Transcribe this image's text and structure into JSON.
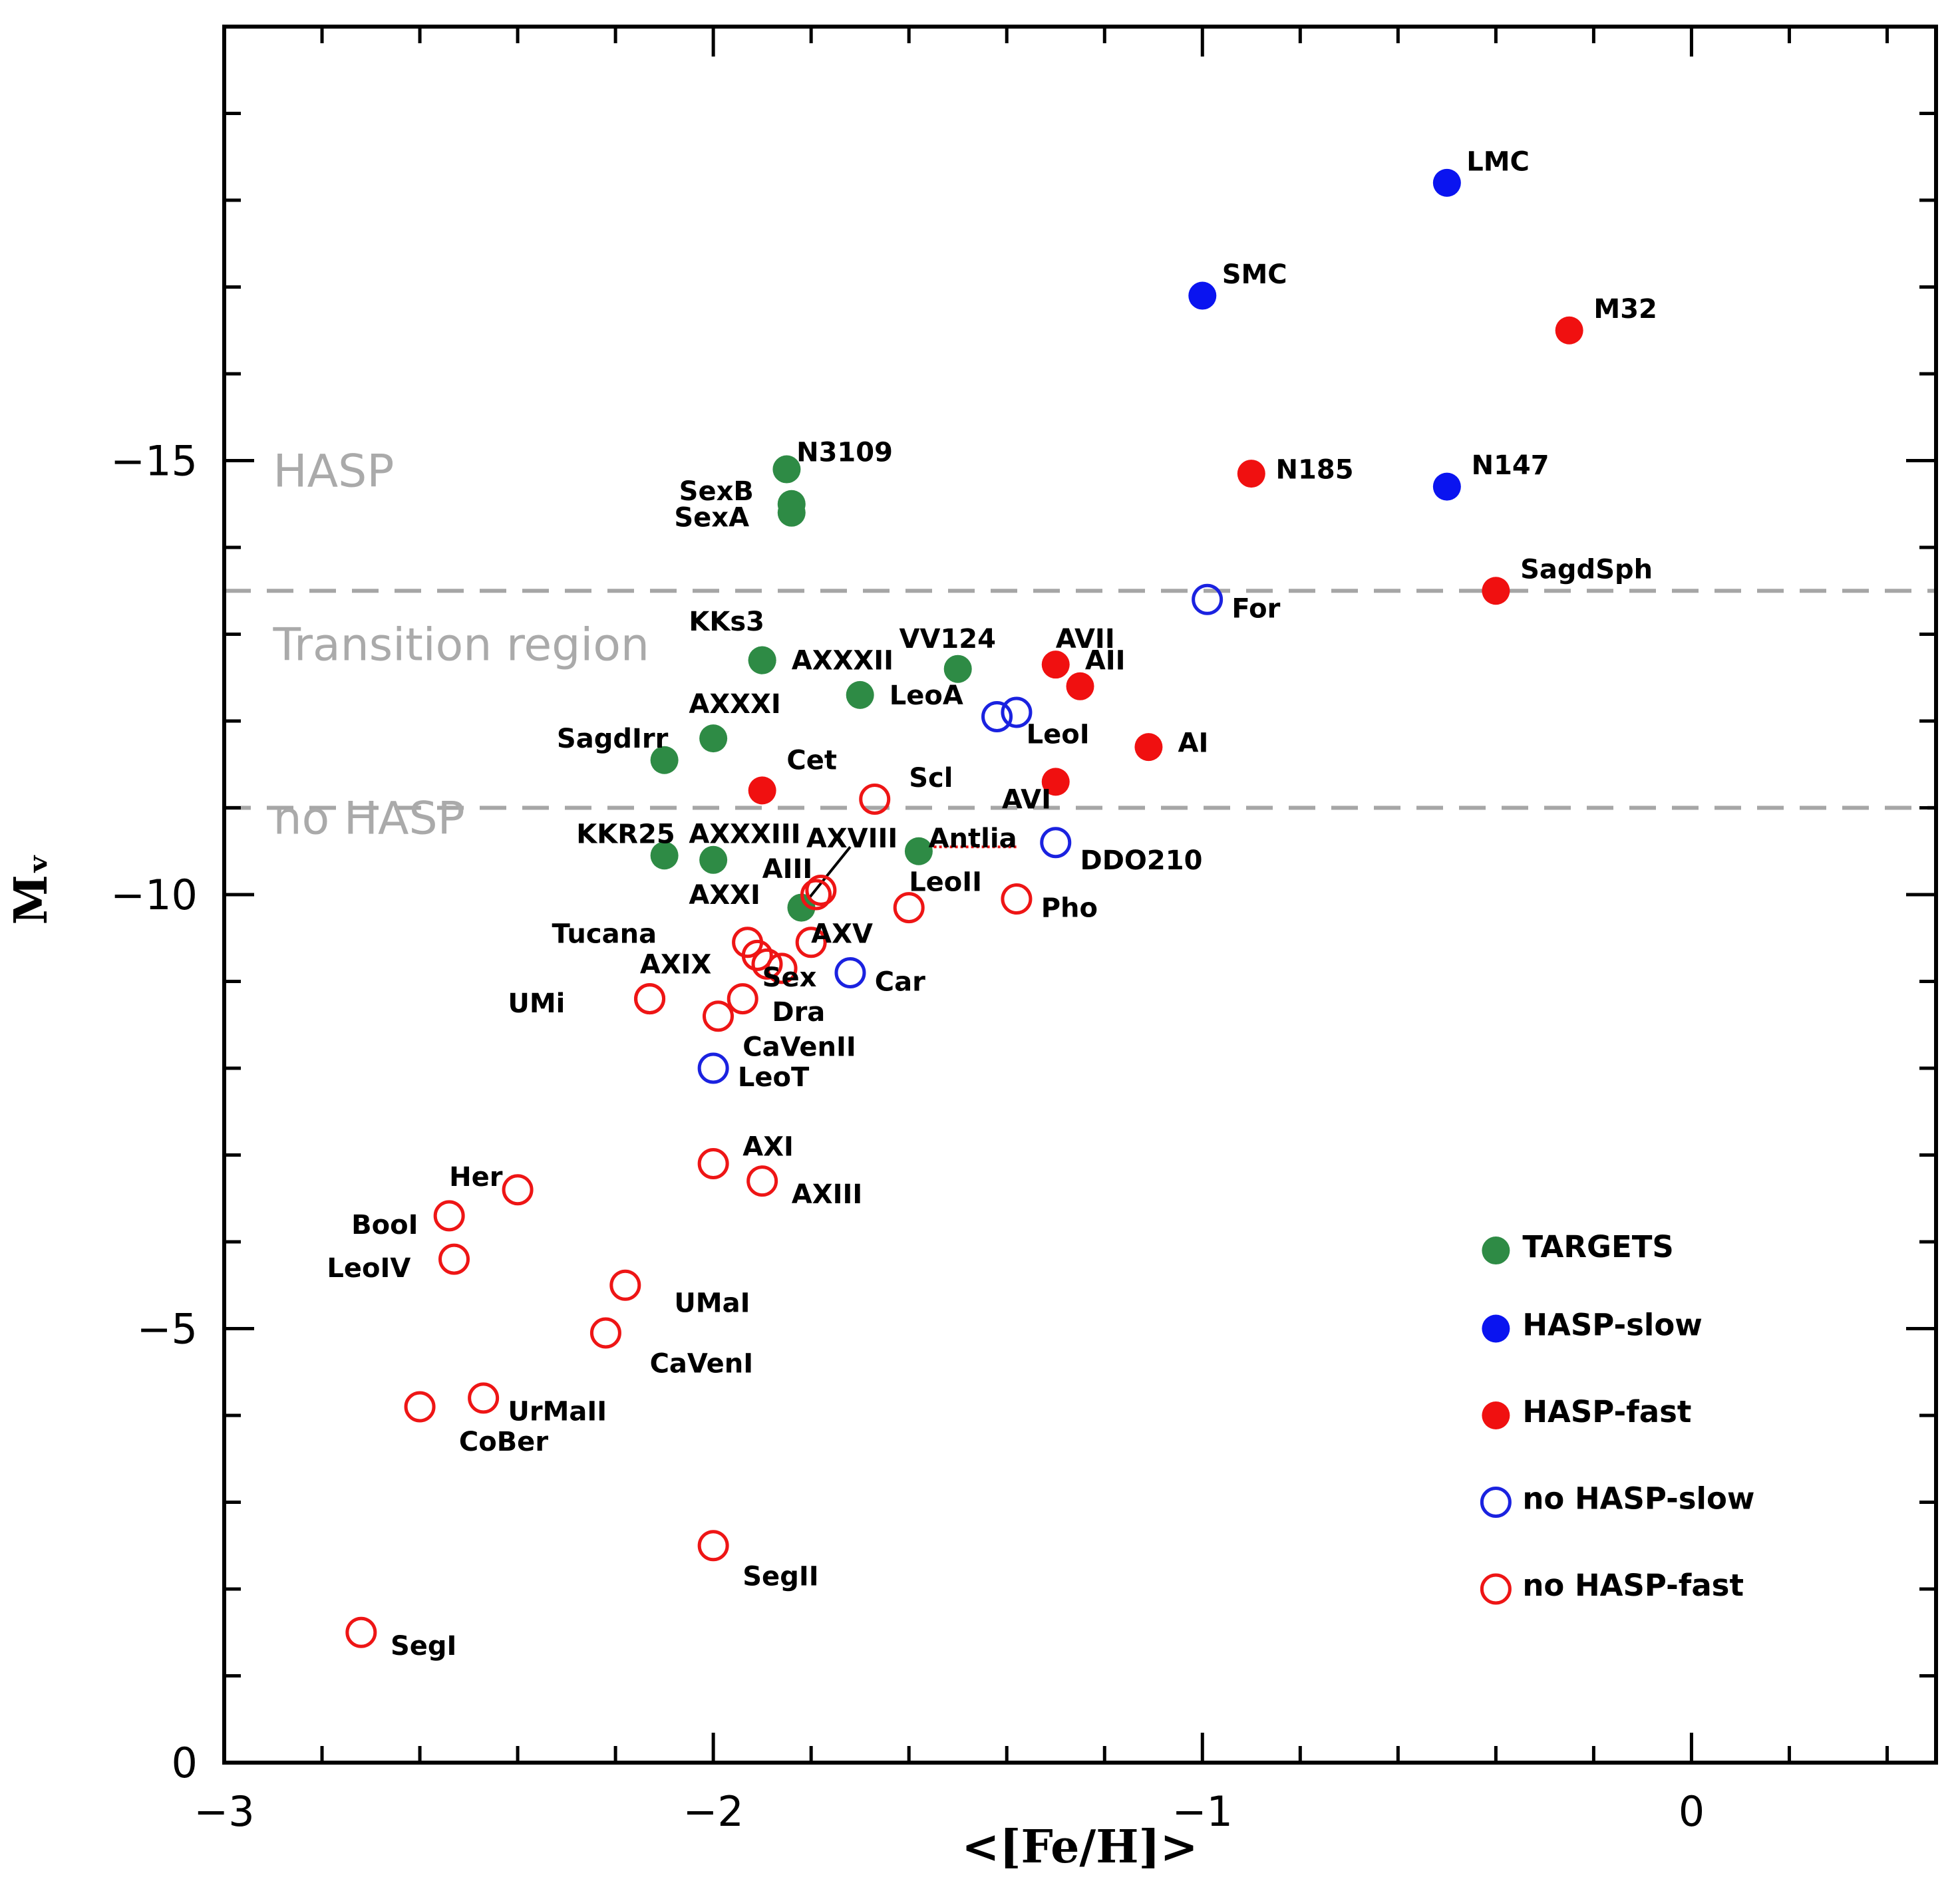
{
  "chart_data": {
    "type": "scatter",
    "xlabel": "<[Fe/H]>",
    "ylabel": "Mᵥ",
    "xlim": [
      -3,
      0.5
    ],
    "ylim": [
      0,
      -20
    ],
    "x_ticks": [
      {
        "value": -3,
        "label": "−3"
      },
      {
        "value": -2,
        "label": "−2"
      },
      {
        "value": -1,
        "label": "−1"
      },
      {
        "value": 0,
        "label": "0"
      }
    ],
    "y_ticks": [
      {
        "value": -15,
        "label": "−15"
      },
      {
        "value": -10,
        "label": "−10"
      },
      {
        "value": -5,
        "label": "−5"
      },
      {
        "value": 0,
        "label": "0"
      }
    ],
    "boundaries": [
      -13.5,
      -11.0
    ],
    "regions": [
      {
        "text": "HASP",
        "y": -14.7
      },
      {
        "text": "Transition region",
        "y": -12.7
      },
      {
        "text": "no HASP",
        "y": -10.7
      }
    ],
    "styles": {
      "target": {
        "color": "#2e8b45",
        "filled": true
      },
      "hasp_slow": {
        "color": "#0a14f0",
        "filled": true
      },
      "hasp_fast": {
        "color": "#f01010",
        "filled": true
      },
      "nohasp_slow": {
        "color": "#1a22e0",
        "filled": false
      },
      "nohasp_fast": {
        "color": "#ee1515",
        "filled": false
      }
    },
    "legend": [
      {
        "label": "TARGETS",
        "group": "target",
        "y": -5.9
      },
      {
        "label": "HASP-slow",
        "group": "hasp_slow",
        "y": -5.0
      },
      {
        "label": "HASP-fast",
        "group": "hasp_fast",
        "y": -4.0
      },
      {
        "label": "no HASP-slow",
        "group": "nohasp_slow",
        "y": -3.0
      },
      {
        "label": "no HASP-fast",
        "group": "nohasp_fast",
        "y": -2.0
      }
    ],
    "legend_x": -0.4,
    "series": [
      {
        "name": "TARGETS",
        "group": "target",
        "points": [
          {
            "label": "N3109",
            "x": -1.85,
            "y": -14.9,
            "lx": -1.83,
            "ly": -15.1
          },
          {
            "label": "SexB",
            "x": -1.84,
            "y": -14.5,
            "lx": -2.07,
            "ly": -14.65
          },
          {
            "label": "SexA",
            "x": -1.84,
            "y": -14.4,
            "lx": -2.08,
            "ly": -14.35
          },
          {
            "label": "KKs3",
            "x": -1.9,
            "y": -12.7,
            "lx": -2.05,
            "ly": -13.15
          },
          {
            "label": "AXXXII",
            "x": -1.9,
            "y": -12.7,
            "lx": -1.84,
            "ly": -12.7
          },
          {
            "label": "VV124",
            "x": -1.5,
            "y": -12.6,
            "lx": -1.62,
            "ly": -12.95
          },
          {
            "label": "LeoA",
            "x": -1.7,
            "y": -12.3,
            "lx": -1.64,
            "ly": -12.3
          },
          {
            "label": "AXXXI",
            "x": -2.0,
            "y": -11.8,
            "lx": -2.05,
            "ly": -12.2
          },
          {
            "label": "SagdIrr",
            "x": -2.1,
            "y": -11.55,
            "lx": -2.32,
            "ly": -11.8
          },
          {
            "label": "KKR25",
            "x": -2.1,
            "y": -10.45,
            "lx": -2.28,
            "ly": -10.7
          },
          {
            "label": "AXXXIII",
            "x": -2.0,
            "y": -10.4,
            "lx": -2.05,
            "ly": -10.7
          },
          {
            "label": "Antlia",
            "x": -1.58,
            "y": -10.5,
            "lx": -1.56,
            "ly": -10.65
          },
          {
            "label": "AXXI",
            "x": -1.82,
            "y": -9.85,
            "lx": -2.05,
            "ly": -10.0
          }
        ]
      },
      {
        "name": "HASP-slow",
        "group": "hasp_slow",
        "points": [
          {
            "label": "LMC",
            "x": -0.5,
            "y": -18.2,
            "lx": -0.46,
            "ly": -18.45
          },
          {
            "label": "SMC",
            "x": -1.0,
            "y": -16.9,
            "lx": -0.96,
            "ly": -17.15
          },
          {
            "label": "N147",
            "x": -0.5,
            "y": -14.7,
            "lx": -0.45,
            "ly": -14.95
          }
        ]
      },
      {
        "name": "HASP-fast",
        "group": "hasp_fast",
        "points": [
          {
            "label": "M32",
            "x": -0.25,
            "y": -16.5,
            "lx": -0.2,
            "ly": -16.75
          },
          {
            "label": "N185",
            "x": -0.9,
            "y": -14.85,
            "lx": -0.85,
            "ly": -14.9
          },
          {
            "label": "SagdSph",
            "x": -0.4,
            "y": -13.5,
            "lx": -0.35,
            "ly": -13.75
          },
          {
            "label": "AVII",
            "x": -1.3,
            "y": -12.65,
            "lx": -1.3,
            "ly": -12.95
          },
          {
            "label": "AII",
            "x": -1.25,
            "y": -12.4,
            "lx": -1.24,
            "ly": -12.7
          },
          {
            "label": "AI",
            "x": -1.11,
            "y": -11.7,
            "lx": -1.05,
            "ly": -11.75
          },
          {
            "label": "Cet",
            "x": -1.9,
            "y": -11.2,
            "lx": -1.85,
            "ly": -11.55
          },
          {
            "label": "AVI",
            "x": -1.3,
            "y": -11.3,
            "lx": -1.41,
            "ly": -11.1
          }
        ]
      },
      {
        "name": "no HASP-slow",
        "group": "nohasp_slow",
        "points": [
          {
            "label": "For",
            "x": -0.99,
            "y": -13.4,
            "lx": -0.94,
            "ly": -13.3
          },
          {
            "label": "LeoI",
            "x": -1.42,
            "y": -12.05,
            "lx": -1.36,
            "ly": -11.85
          },
          {
            "label": "",
            "x": -1.38,
            "y": -12.1,
            "lx": 0,
            "ly": 0
          },
          {
            "label": "DDO210",
            "x": -1.3,
            "y": -10.6,
            "lx": -1.25,
            "ly": -10.4
          },
          {
            "label": "Car",
            "x": -1.72,
            "y": -9.1,
            "lx": -1.67,
            "ly": -9.0
          },
          {
            "label": "LeoT",
            "x": -2.0,
            "y": -8.0,
            "lx": -1.95,
            "ly": -7.9
          }
        ]
      },
      {
        "name": "no HASP-fast",
        "group": "nohasp_fast",
        "points": [
          {
            "label": "Scl",
            "x": -1.67,
            "y": -11.1,
            "lx": -1.6,
            "ly": -11.35
          },
          {
            "label": "AXVIII",
            "x": -1.79,
            "y": -10.0,
            "lx": -1.81,
            "ly": -10.65
          },
          {
            "label": "AIII",
            "x": -1.78,
            "y": -10.05,
            "lx": -1.9,
            "ly": -10.3
          },
          {
            "label": "LeoII",
            "x": -1.6,
            "y": -9.85,
            "lx": -1.6,
            "ly": -10.15
          },
          {
            "label": "Pho",
            "x": -1.38,
            "y": -9.95,
            "lx": -1.33,
            "ly": -9.85
          },
          {
            "label": "Tucana",
            "x": -1.93,
            "y": -9.45,
            "lx": -2.33,
            "ly": -9.55
          },
          {
            "label": "",
            "x": -1.91,
            "y": -9.3,
            "lx": 0,
            "ly": 0
          },
          {
            "label": "",
            "x": -1.89,
            "y": -9.2,
            "lx": 0,
            "ly": 0
          },
          {
            "label": "AXV",
            "x": -1.8,
            "y": -9.45,
            "lx": -1.8,
            "ly": -9.55
          },
          {
            "label": "Sex",
            "x": -1.86,
            "y": -9.15,
            "lx": -1.9,
            "ly": -9.05
          },
          {
            "label": "AXIX",
            "x": -2.13,
            "y": -8.8,
            "lx": -2.15,
            "ly": -9.2
          },
          {
            "label": "UMi",
            "x": -2.13,
            "y": -8.8,
            "lx": -2.42,
            "ly": -8.75
          },
          {
            "label": "Dra",
            "x": -1.94,
            "y": -8.8,
            "lx": -1.88,
            "ly": -8.65
          },
          {
            "label": "CaVenII",
            "x": -1.99,
            "y": -8.6,
            "lx": -1.94,
            "ly": -8.25
          },
          {
            "label": "AXI",
            "x": -2.0,
            "y": -6.9,
            "lx": -1.94,
            "ly": -7.1
          },
          {
            "label": "AXIII",
            "x": -1.9,
            "y": -6.7,
            "lx": -1.84,
            "ly": -6.55
          },
          {
            "label": "Her",
            "x": -2.4,
            "y": -6.6,
            "lx": -2.54,
            "ly": -6.75
          },
          {
            "label": "BooI",
            "x": -2.54,
            "y": -6.3,
            "lx": -2.74,
            "ly": -6.2
          },
          {
            "label": "LeoIV",
            "x": -2.53,
            "y": -5.8,
            "lx": -2.79,
            "ly": -5.7
          },
          {
            "label": "UMaI",
            "x": -2.18,
            "y": -5.5,
            "lx": -2.08,
            "ly": -5.3
          },
          {
            "label": "CaVenI",
            "x": -2.22,
            "y": -4.95,
            "lx": -2.13,
            "ly": -4.6
          },
          {
            "label": "UrMaII",
            "x": -2.47,
            "y": -4.2,
            "lx": -2.42,
            "ly": -4.05
          },
          {
            "label": "CoBer",
            "x": -2.6,
            "y": -4.1,
            "lx": -2.52,
            "ly": -3.7
          },
          {
            "label": "SegII",
            "x": -2.0,
            "y": -2.5,
            "lx": -1.94,
            "ly": -2.15
          },
          {
            "label": "SegI",
            "x": -2.72,
            "y": -1.5,
            "lx": -2.66,
            "ly": -1.35
          }
        ]
      }
    ],
    "annotation_lines": [
      {
        "type": "solid",
        "color": "#000000",
        "x1": -1.82,
        "y1": -9.85,
        "x2": -1.72,
        "y2": -10.55
      },
      {
        "type": "dotted",
        "color": "#ee1515",
        "x1": -1.56,
        "y1": -10.55,
        "x2": -1.38,
        "y2": -10.55
      }
    ]
  }
}
